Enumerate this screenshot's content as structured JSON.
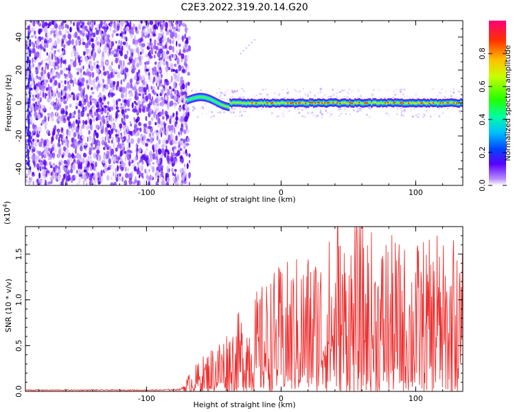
{
  "figure_title": "C2E3.2022.319.20.14.G20",
  "chart_data": [
    {
      "type": "heatmap",
      "xlabel": "Height of straight line (km)",
      "ylabel": "Frequency (Hz)",
      "xlim": [
        -190,
        135
      ],
      "ylim": [
        -50,
        50
      ],
      "xticks": [
        -100,
        0,
        100
      ],
      "yticks": [
        -40,
        -20,
        0,
        20,
        40
      ],
      "colorbar": {
        "label": "Normalized spectral amplitude",
        "range": [
          0,
          1
        ],
        "ticks": [
          0.0,
          0.2,
          0.4,
          0.6,
          0.8
        ]
      },
      "noise_region_x": [
        -190,
        -68
      ],
      "signal_start_x": -70,
      "signal_frequency": 0,
      "grid": false
    },
    {
      "type": "line",
      "xlabel": "Height of straight line (km)",
      "ylabel": "SNR (10 * v/v)",
      "multiplier": "(x10",
      "multiplier_exp": "4",
      "multiplier_close": ")",
      "xlim": [
        -190,
        135
      ],
      "ylim": [
        0,
        1.8
      ],
      "xticks": [
        -100,
        0,
        100
      ],
      "yticks": [
        0.0,
        0.5,
        1.0,
        1.5
      ],
      "color": "#ee3030",
      "series": [
        {
          "x": [
            -190,
            -170,
            -150,
            -130,
            -110,
            -90,
            -75,
            -65,
            -55,
            -45,
            -35,
            -25,
            -15,
            -5,
            5,
            15,
            25,
            35,
            45,
            55,
            65,
            75,
            85,
            95,
            105,
            115,
            125,
            135
          ],
          "y": [
            0.02,
            0.02,
            0.02,
            0.02,
            0.02,
            0.02,
            0.03,
            0.15,
            0.25,
            0.35,
            0.45,
            0.55,
            0.65,
            0.75,
            0.8,
            0.85,
            0.9,
            0.95,
            1.0,
            1.05,
            1.0,
            0.95,
            0.95,
            0.9,
            0.95,
            0.9,
            0.9,
            0.85
          ]
        }
      ],
      "peak_values": [
        1.8,
        1.8,
        1.7,
        1.65,
        1.6,
        1.3
      ],
      "grid": false
    }
  ]
}
